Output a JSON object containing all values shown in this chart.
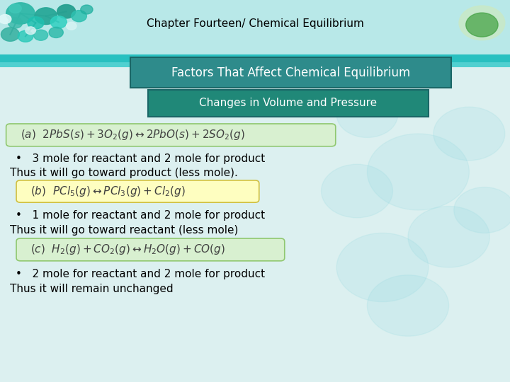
{
  "title": "Chapter Fourteen/ Chemical Equilibrium",
  "subtitle1": "Factors That Affect Chemical Equilibrium",
  "subtitle2": "Changes in Volume and Pressure",
  "header_bg_light": "#A8E8E8",
  "header_bg_mid": "#40C8C8",
  "header_stripe_bottom": "#30B8B8",
  "slide_bg": "#DCF0F0",
  "sub1_bg": "#2E8B8B",
  "sub2_bg": "#208878",
  "eq_a_bg": "#D8F0D0",
  "eq_a_border": "#90C870",
  "eq_b_bg": "#FEFEC0",
  "eq_b_border": "#D0C040",
  "eq_c_bg": "#D8F0D0",
  "eq_c_border": "#90C870",
  "title_fontsize": 11,
  "subtitle1_fontsize": 12,
  "subtitle2_fontsize": 11,
  "eq_fontsize": 11,
  "bullet_fontsize": 11
}
